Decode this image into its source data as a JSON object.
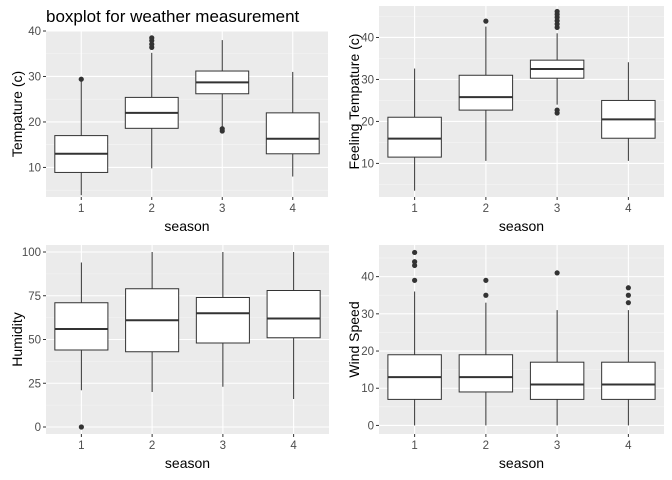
{
  "figure": {
    "title": "boxplot for weather measurement"
  },
  "chart_data": [
    {
      "type": "boxplot",
      "xlabel": "season",
      "ylabel": "Tempature (c)",
      "categories": [
        "1",
        "2",
        "3",
        "4"
      ],
      "ylim": [
        3.5,
        40
      ],
      "yticks": [
        10,
        20,
        30,
        40
      ],
      "grid": true,
      "boxes": [
        {
          "category": "1",
          "whisker_low": 3.9,
          "q1": 8.9,
          "median": 13.0,
          "q3": 17.0,
          "whisker_high": 29.0,
          "outliers": [
            29.4
          ]
        },
        {
          "category": "2",
          "whisker_low": 9.8,
          "q1": 18.6,
          "median": 22.0,
          "q3": 25.4,
          "whisker_high": 35.2,
          "outliers": [
            36.4,
            37.1,
            37.9,
            38.5
          ]
        },
        {
          "category": "3",
          "whisker_low": 19.0,
          "q1": 26.2,
          "median": 28.7,
          "q3": 31.2,
          "whisker_high": 38.0,
          "outliers": [
            18.0,
            18.5
          ]
        },
        {
          "category": "4",
          "whisker_low": 8.0,
          "q1": 13.0,
          "median": 16.3,
          "q3": 22.0,
          "whisker_high": 31.0,
          "outliers": []
        }
      ]
    },
    {
      "type": "boxplot",
      "xlabel": "season",
      "ylabel": "Feeling Tempature (c)",
      "categories": [
        "1",
        "2",
        "3",
        "4"
      ],
      "ylim": [
        2,
        47.5
      ],
      "yticks": [
        10,
        20,
        30,
        40
      ],
      "grid": true,
      "boxes": [
        {
          "category": "1",
          "whisker_low": 3.5,
          "q1": 11.5,
          "median": 15.9,
          "q3": 21.0,
          "whisker_high": 32.6,
          "outliers": []
        },
        {
          "category": "2",
          "whisker_low": 10.6,
          "q1": 22.7,
          "median": 25.8,
          "q3": 31.0,
          "whisker_high": 42.6,
          "outliers": [
            43.9
          ]
        },
        {
          "category": "3",
          "whisker_low": 24.0,
          "q1": 30.3,
          "median": 32.5,
          "q3": 34.6,
          "whisker_high": 41.0,
          "outliers": [
            22.0,
            22.7,
            42.4,
            43.2,
            44.0,
            44.8,
            45.5,
            46.2
          ]
        },
        {
          "category": "4",
          "whisker_low": 10.6,
          "q1": 16.0,
          "median": 20.5,
          "q3": 25.0,
          "whisker_high": 34.1,
          "outliers": []
        }
      ]
    },
    {
      "type": "boxplot",
      "xlabel": "season",
      "ylabel": "Humidity",
      "categories": [
        "1",
        "2",
        "3",
        "4"
      ],
      "ylim": [
        -4,
        104
      ],
      "yticks": [
        0,
        25,
        50,
        75,
        100
      ],
      "grid": true,
      "boxes": [
        {
          "category": "1",
          "whisker_low": 21.0,
          "q1": 44.0,
          "median": 56.0,
          "q3": 71.0,
          "whisker_high": 94.0,
          "outliers": [
            0
          ]
        },
        {
          "category": "2",
          "whisker_low": 20.0,
          "q1": 43.0,
          "median": 61.0,
          "q3": 79.0,
          "whisker_high": 100.0,
          "outliers": []
        },
        {
          "category": "3",
          "whisker_low": 23.0,
          "q1": 48.0,
          "median": 65.0,
          "q3": 74.0,
          "whisker_high": 100.0,
          "outliers": []
        },
        {
          "category": "4",
          "whisker_low": 16.0,
          "q1": 51.0,
          "median": 62.0,
          "q3": 78.0,
          "whisker_high": 100.0,
          "outliers": []
        }
      ]
    },
    {
      "type": "boxplot",
      "xlabel": "season",
      "ylabel": "Wind Speed",
      "categories": [
        "1",
        "2",
        "3",
        "4"
      ],
      "ylim": [
        -2.3,
        48.5
      ],
      "yticks": [
        0,
        10,
        20,
        30,
        40
      ],
      "grid": true,
      "boxes": [
        {
          "category": "1",
          "whisker_low": 0,
          "q1": 7.0,
          "median": 13.0,
          "q3": 19.0,
          "whisker_high": 36.0,
          "outliers": [
            39.0,
            43.0,
            44.0,
            46.5
          ]
        },
        {
          "category": "2",
          "whisker_low": 0,
          "q1": 9.0,
          "median": 13.0,
          "q3": 19.0,
          "whisker_high": 33.0,
          "outliers": [
            35.0,
            39.0
          ]
        },
        {
          "category": "3",
          "whisker_low": 0,
          "q1": 7.0,
          "median": 11.0,
          "q3": 17.0,
          "whisker_high": 31.0,
          "outliers": [
            41.0
          ]
        },
        {
          "category": "4",
          "whisker_low": 0,
          "q1": 7.0,
          "median": 11.0,
          "q3": 17.0,
          "whisker_high": 31.0,
          "outliers": [
            33.0,
            35.0,
            37.0
          ]
        }
      ]
    }
  ],
  "colors": {
    "panel_background": "#ebebeb",
    "grid_major": "#ffffff",
    "grid_minor": "#f5f5f5",
    "box_fill": "#ffffff",
    "box_stroke": "#333333",
    "outlier": "#333333",
    "tick_label": "#4d4d4d"
  }
}
